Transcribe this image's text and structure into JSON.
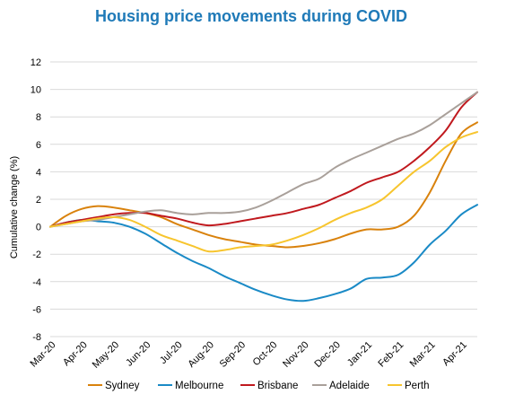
{
  "chart_data": {
    "type": "line",
    "title": "Housing price movements during COVID",
    "ylabel": "Cumulative change (%)",
    "xlabel": "",
    "ylim": [
      -8,
      12
    ],
    "yticks": [
      -8,
      -6,
      -4,
      -2,
      0,
      2,
      4,
      6,
      8,
      10,
      12
    ],
    "x_labels": [
      "Mar-20",
      "Apr-20",
      "May-20",
      "Jun-20",
      "Jul-20",
      "Aug-20",
      "Sep-20",
      "Oct-20",
      "Nov-20",
      "Dec-20",
      "Jan-21",
      "Feb-21",
      "Mar-21",
      "Apr-21"
    ],
    "grid": true,
    "legend_position": "bottom",
    "series": [
      {
        "name": "Sydney",
        "color": "#d9820c",
        "x": [
          0,
          0.5,
          1,
          1.5,
          2,
          2.5,
          3,
          3.5,
          4,
          4.5,
          5,
          5.5,
          6,
          6.5,
          7,
          7.5,
          8,
          8.5,
          9,
          9.5,
          10,
          10.5,
          11,
          11.5,
          12,
          12.5,
          13,
          13.5
        ],
        "values": [
          0,
          0.8,
          1.3,
          1.5,
          1.4,
          1.2,
          1.0,
          0.7,
          0.2,
          -0.2,
          -0.6,
          -0.9,
          -1.1,
          -1.3,
          -1.4,
          -1.5,
          -1.4,
          -1.2,
          -0.9,
          -0.5,
          -0.2,
          -0.2,
          0.0,
          0.8,
          2.5,
          4.8,
          6.8,
          7.6
        ]
      },
      {
        "name": "Melbourne",
        "color": "#1a8ac6",
        "x": [
          0,
          0.5,
          1,
          1.5,
          2,
          2.5,
          3,
          3.5,
          4,
          4.5,
          5,
          5.5,
          6,
          6.5,
          7,
          7.5,
          8,
          8.5,
          9,
          9.5,
          10,
          10.5,
          11,
          11.5,
          12,
          12.5,
          13,
          13.5
        ],
        "values": [
          0,
          0.3,
          0.5,
          0.4,
          0.3,
          0.0,
          -0.5,
          -1.2,
          -1.9,
          -2.5,
          -3.0,
          -3.6,
          -4.1,
          -4.6,
          -5.0,
          -5.3,
          -5.4,
          -5.2,
          -4.9,
          -4.5,
          -3.8,
          -3.7,
          -3.5,
          -2.6,
          -1.3,
          -0.3,
          0.9,
          1.6
        ]
      },
      {
        "name": "Brisbane",
        "color": "#c0191e",
        "x": [
          0,
          0.5,
          1,
          1.5,
          2,
          2.5,
          3,
          3.5,
          4,
          4.5,
          5,
          5.5,
          6,
          6.5,
          7,
          7.5,
          8,
          8.5,
          9,
          9.5,
          10,
          10.5,
          11,
          11.5,
          12,
          12.5,
          13,
          13.5
        ],
        "values": [
          0,
          0.3,
          0.5,
          0.7,
          0.9,
          1.0,
          1.0,
          0.8,
          0.6,
          0.3,
          0.1,
          0.2,
          0.4,
          0.6,
          0.8,
          1.0,
          1.3,
          1.6,
          2.1,
          2.6,
          3.2,
          3.6,
          4.0,
          4.8,
          5.8,
          7.0,
          8.7,
          9.8
        ]
      },
      {
        "name": "Adelaide",
        "color": "#a9a09a",
        "x": [
          0,
          0.5,
          1,
          1.5,
          2,
          2.5,
          3,
          3.5,
          4,
          4.5,
          5,
          5.5,
          6,
          6.5,
          7,
          7.5,
          8,
          8.5,
          9,
          9.5,
          10,
          10.5,
          11,
          11.5,
          12,
          12.5,
          13,
          13.5
        ],
        "values": [
          0,
          0.2,
          0.4,
          0.5,
          0.7,
          0.9,
          1.1,
          1.2,
          1.0,
          0.9,
          1.0,
          1.0,
          1.1,
          1.4,
          1.9,
          2.5,
          3.1,
          3.5,
          4.3,
          4.9,
          5.4,
          5.9,
          6.4,
          6.8,
          7.4,
          8.2,
          9.0,
          9.8
        ]
      },
      {
        "name": "Perth",
        "color": "#f7c52e",
        "x": [
          0,
          0.5,
          1,
          1.5,
          2,
          2.5,
          3,
          3.5,
          4,
          4.5,
          5,
          5.5,
          6,
          6.5,
          7,
          7.5,
          8,
          8.5,
          9,
          9.5,
          10,
          10.5,
          11,
          11.5,
          12,
          12.5,
          13,
          13.5
        ],
        "values": [
          0,
          0.2,
          0.4,
          0.6,
          0.7,
          0.5,
          0.0,
          -0.6,
          -1.0,
          -1.4,
          -1.8,
          -1.7,
          -1.5,
          -1.4,
          -1.3,
          -1.0,
          -0.6,
          -0.1,
          0.5,
          1.0,
          1.4,
          2.0,
          3.0,
          4.0,
          4.8,
          5.8,
          6.5,
          6.9
        ]
      }
    ]
  }
}
